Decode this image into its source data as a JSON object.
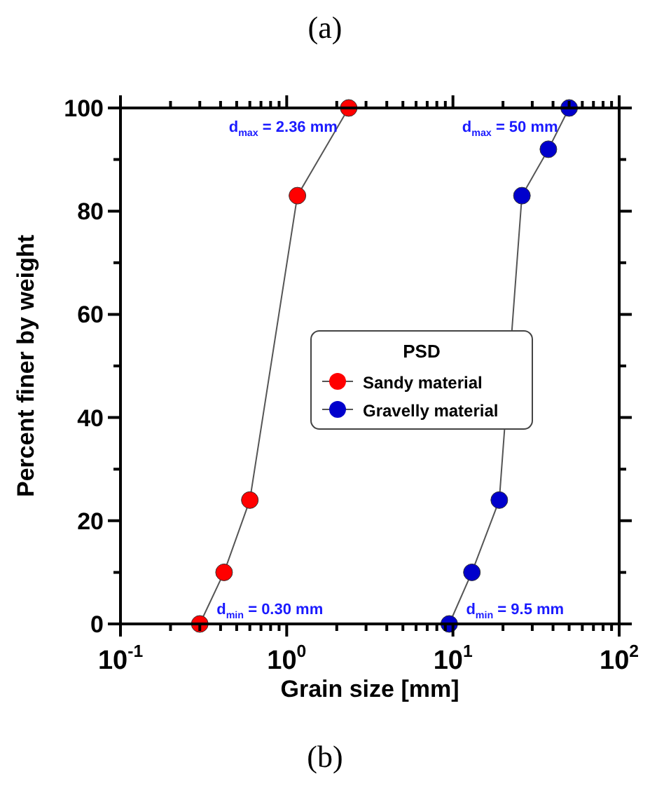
{
  "chart_data": {
    "type": "line",
    "title": "(a)",
    "xlabel": "Grain size [mm]",
    "ylabel": "Percent finer by weight",
    "log": "x",
    "xlim": [
      0.1,
      100
    ],
    "xticks": [
      {
        "value": 0.1,
        "label": "10$^{-1}$"
      },
      {
        "value": 0.2,
        "label": null
      },
      {
        "value": 0.3,
        "label": null
      },
      {
        "value": 0.4,
        "label": null
      },
      {
        "value": 0.5,
        "label": null
      },
      {
        "value": 0.6,
        "label": null
      },
      {
        "value": 0.7,
        "label": null
      },
      {
        "value": 0.8,
        "label": null
      },
      {
        "value": 0.9,
        "label": null
      },
      {
        "value": 1,
        "label": "10$^{0}$"
      },
      {
        "value": 2,
        "label": null
      },
      {
        "value": 3,
        "label": null
      },
      {
        "value": 4,
        "label": null
      },
      {
        "value": 5,
        "label": null
      },
      {
        "value": 6,
        "label": null
      },
      {
        "value": 7,
        "label": null
      },
      {
        "value": 8,
        "label": null
      },
      {
        "value": 9,
        "label": null
      },
      {
        "value": 10,
        "label": "10$^{1}$"
      },
      {
        "value": 20,
        "label": null
      },
      {
        "value": 30,
        "label": null
      },
      {
        "value": 40,
        "label": null
      },
      {
        "value": 50,
        "label": null
      },
      {
        "value": 60,
        "label": null
      },
      {
        "value": 70,
        "label": null
      },
      {
        "value": 80,
        "label": null
      },
      {
        "value": 90,
        "label": null
      },
      {
        "value": 100,
        "label": "10$^{2}$"
      }
    ],
    "ylim": [
      0,
      100
    ],
    "yticks": [
      0,
      {
        "value": 10,
        "label": null
      },
      20,
      {
        "value": 30,
        "label": null
      },
      40,
      {
        "value": 50,
        "label": null
      },
      60,
      {
        "value": 70,
        "label": null
      },
      80,
      {
        "value": 90,
        "label": null
      },
      100
    ],
    "grid": false,
    "legend": "center",
    "legend_title": "PSD",
    "marker": "circle",
    "line_style": "solid",
    "series": [
      {
        "name": "Sandy material",
        "color": "#ff0000",
        "x": [
          0.3,
          0.42,
          0.6,
          1.16,
          2.36
        ],
        "values": [
          0,
          10,
          24,
          83,
          100
        ]
      },
      {
        "name": "Gravelly material",
        "color": "#0000cc",
        "x": [
          9.5,
          13,
          19,
          26,
          37.5,
          50
        ],
        "values": [
          0,
          10,
          24,
          83,
          92,
          100
        ]
      }
    ],
    "annotations": [
      {
        "text": "d$_{max}$ = 2.36 mm",
        "x": 2.36,
        "y": 100
      },
      {
        "text": "d$_{max}$ = 50 mm",
        "x": 50,
        "y": 100
      },
      {
        "text": "d$_{min}$ = 0.30 mm",
        "x": 0.3,
        "y": 0
      },
      {
        "text": "d$_{min}$ = 9.5 mm",
        "x": 9.5,
        "y": 0
      },
      "(b)"
    ]
  }
}
